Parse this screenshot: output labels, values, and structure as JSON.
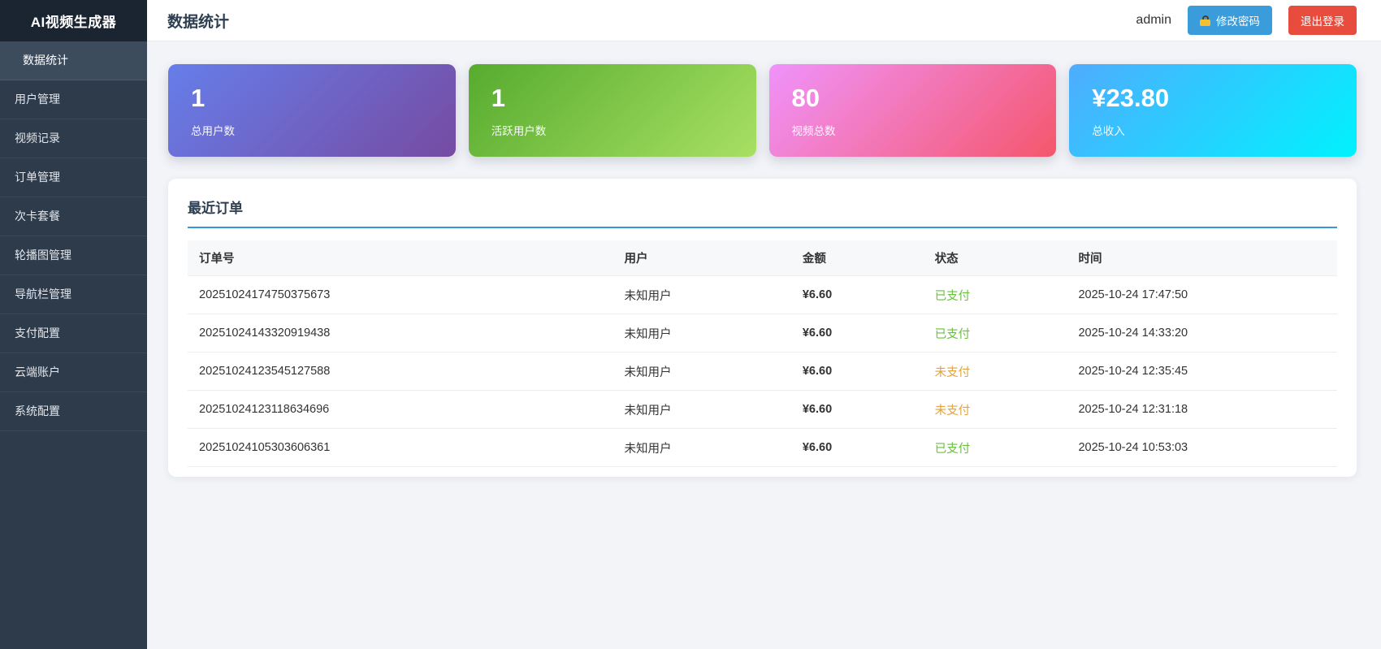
{
  "app": {
    "title": "AI视频生成器"
  },
  "sidebar": {
    "items": [
      {
        "label": "数据统计",
        "active": true
      },
      {
        "label": "用户管理",
        "active": false
      },
      {
        "label": "视频记录",
        "active": false
      },
      {
        "label": "订单管理",
        "active": false
      },
      {
        "label": "次卡套餐",
        "active": false
      },
      {
        "label": "轮播图管理",
        "active": false
      },
      {
        "label": "导航栏管理",
        "active": false
      },
      {
        "label": "支付配置",
        "active": false
      },
      {
        "label": "云端账户",
        "active": false
      },
      {
        "label": "系统配置",
        "active": false
      }
    ]
  },
  "header": {
    "title": "数据统计",
    "username": "admin",
    "change_password_label": "修改密码",
    "logout_label": "退出登录",
    "icons": {
      "change_password": "lock-icon"
    },
    "colors": {
      "change_password_button": "#3b9cdb",
      "logout_button": "#e74c3c"
    }
  },
  "stats": {
    "cards": [
      {
        "value": "1",
        "label": "总用户数",
        "gradient_from": "#667eea",
        "gradient_to": "#764ba2"
      },
      {
        "value": "1",
        "label": "活跃用户数",
        "gradient_from": "#56ab2f",
        "gradient_to": "#a8e063"
      },
      {
        "value": "80",
        "label": "视频总数",
        "gradient_from": "#f093fb",
        "gradient_to": "#f5576c"
      },
      {
        "value": "¥23.80",
        "label": "总收入",
        "gradient_from": "#4facfe",
        "gradient_to": "#00f2fe"
      }
    ]
  },
  "orders": {
    "title": "最近订单",
    "title_underline_color": "#3498db",
    "columns": [
      "订单号",
      "用户",
      "金额",
      "状态",
      "时间"
    ],
    "status_colors": {
      "paid": "#67c23a",
      "unpaid": "#e6a23c"
    },
    "amount_color": "#f5222d",
    "rows": [
      {
        "order_no": "20251024174750375673",
        "user": "未知用户",
        "amount": "¥6.60",
        "status": "已支付",
        "status_type": "paid",
        "time": "2025-10-24 17:47:50"
      },
      {
        "order_no": "20251024143320919438",
        "user": "未知用户",
        "amount": "¥6.60",
        "status": "已支付",
        "status_type": "paid",
        "time": "2025-10-24 14:33:20"
      },
      {
        "order_no": "20251024123545127588",
        "user": "未知用户",
        "amount": "¥6.60",
        "status": "未支付",
        "status_type": "unpaid",
        "time": "2025-10-24 12:35:45"
      },
      {
        "order_no": "20251024123118634696",
        "user": "未知用户",
        "amount": "¥6.60",
        "status": "未支付",
        "status_type": "unpaid",
        "time": "2025-10-24 12:31:18"
      },
      {
        "order_no": "20251024105303606361",
        "user": "未知用户",
        "amount": "¥6.60",
        "status": "已支付",
        "status_type": "paid",
        "time": "2025-10-24 10:53:03"
      }
    ]
  }
}
